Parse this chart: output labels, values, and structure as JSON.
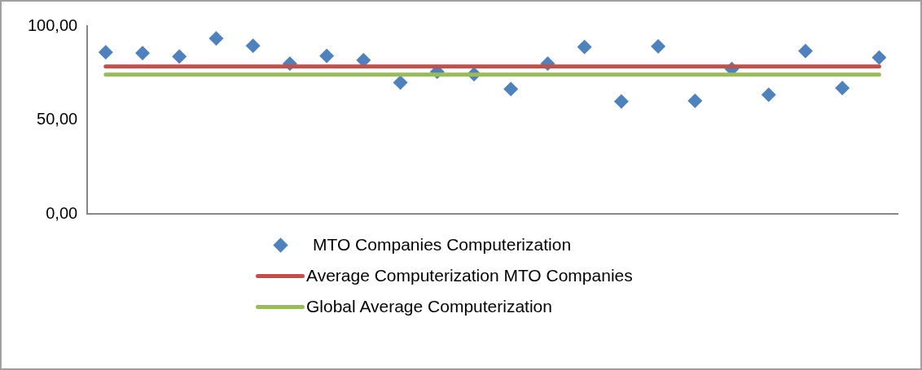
{
  "chart_data": {
    "type": "scatter",
    "categories": [
      null,
      null,
      null,
      null,
      null,
      null,
      null,
      null,
      null,
      null,
      null,
      null,
      null,
      null,
      null,
      null,
      null,
      null,
      null,
      null,
      null,
      null
    ],
    "series": [
      {
        "name": "MTO Companies Computerization",
        "color": "#4f81bd",
        "marker": "diamond",
        "values": [
          86.0,
          85.6,
          83.8,
          93.4,
          89.5,
          80.0,
          84.1,
          81.8,
          69.9,
          75.6,
          74.4,
          66.4,
          80.0,
          88.9,
          59.9,
          89.2,
          60.2,
          77.2,
          63.4,
          86.7,
          67.0,
          83.2
        ]
      },
      {
        "name": "Average Computerization MTO Companies",
        "type": "line",
        "color": "#c0504d",
        "marker": "none",
        "values": [
          78.5,
          78.5,
          78.5,
          78.5,
          78.5,
          78.5,
          78.5,
          78.5,
          78.5,
          78.5,
          78.5,
          78.5,
          78.5,
          78.5,
          78.5,
          78.5,
          78.5,
          78.5,
          78.5,
          78.5,
          78.5,
          78.5
        ]
      },
      {
        "name": "Global Average Computerization",
        "type": "line",
        "color": "#9bbb59",
        "marker": "none",
        "values": [
          74.1,
          74.1,
          74.1,
          74.1,
          74.1,
          74.1,
          74.1,
          74.1,
          74.1,
          74.1,
          74.1,
          74.1,
          74.1,
          74.1,
          74.1,
          74.1,
          74.1,
          74.1,
          74.1,
          74.1,
          74.1,
          74.1
        ]
      }
    ],
    "ylim": [
      0,
      100
    ],
    "yticks": [
      {
        "value": 0,
        "label": "0,00"
      },
      {
        "value": 50,
        "label": "50,00"
      },
      {
        "value": 100,
        "label": "100,00"
      }
    ],
    "grid": false,
    "legend": "bottom",
    "tick_labels": "y"
  }
}
